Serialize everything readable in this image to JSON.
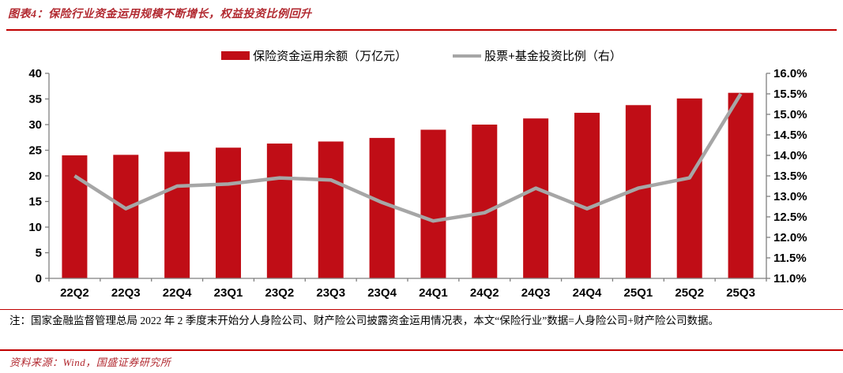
{
  "header": {
    "title": "图表4：保险行业资金运用规模不断增长，权益投资比例回升"
  },
  "legend": {
    "bar_label": "保险资金运用余额（万亿元）",
    "line_label": "股票+基金投资比例（右）"
  },
  "chart_data": {
    "type": "bar",
    "categories": [
      "22Q2",
      "22Q3",
      "22Q4",
      "23Q1",
      "23Q2",
      "23Q3",
      "23Q4",
      "24Q1",
      "24Q2",
      "24Q3",
      "24Q4",
      "25Q1",
      "25Q2",
      "25Q3"
    ],
    "series": [
      {
        "name": "保险资金运用余额（万亿元）",
        "type": "bar",
        "axis": "left",
        "color": "#C00D16",
        "values": [
          24.0,
          24.1,
          24.7,
          25.5,
          26.3,
          26.7,
          27.4,
          29.0,
          30.0,
          31.2,
          32.3,
          33.8,
          35.1,
          36.2
        ]
      },
      {
        "name": "股票+基金投资比例（右）",
        "type": "line",
        "axis": "right",
        "color": "#A6A6A6",
        "values": [
          13.5,
          12.7,
          13.25,
          13.3,
          13.45,
          13.4,
          12.85,
          12.4,
          12.6,
          13.2,
          12.7,
          13.2,
          13.45,
          15.5
        ]
      }
    ],
    "left_axis": {
      "min": 0,
      "max": 40,
      "step": 5,
      "tick_labels": [
        "0",
        "5",
        "10",
        "15",
        "20",
        "25",
        "30",
        "35",
        "40"
      ]
    },
    "right_axis": {
      "min": 11,
      "max": 16,
      "step": 0.5,
      "tick_labels": [
        "11.0%",
        "11.5%",
        "12.0%",
        "12.5%",
        "13.0%",
        "13.5%",
        "14.0%",
        "14.5%",
        "15.0%",
        "15.5%",
        "16.0%"
      ]
    },
    "grid": false,
    "legend_position": "top",
    "axis_color": "#7F7F7F",
    "label_color": "#000000"
  },
  "note": {
    "text": "注：国家金融监督管理总局 2022 年 2 季度末开始分人身险公司、财产险公司披露资金运用情况表，本文“保险行业”数据=人身险公司+财产险公司数据。"
  },
  "source": {
    "text": "资料来源：Wind，国盛证券研究所"
  }
}
